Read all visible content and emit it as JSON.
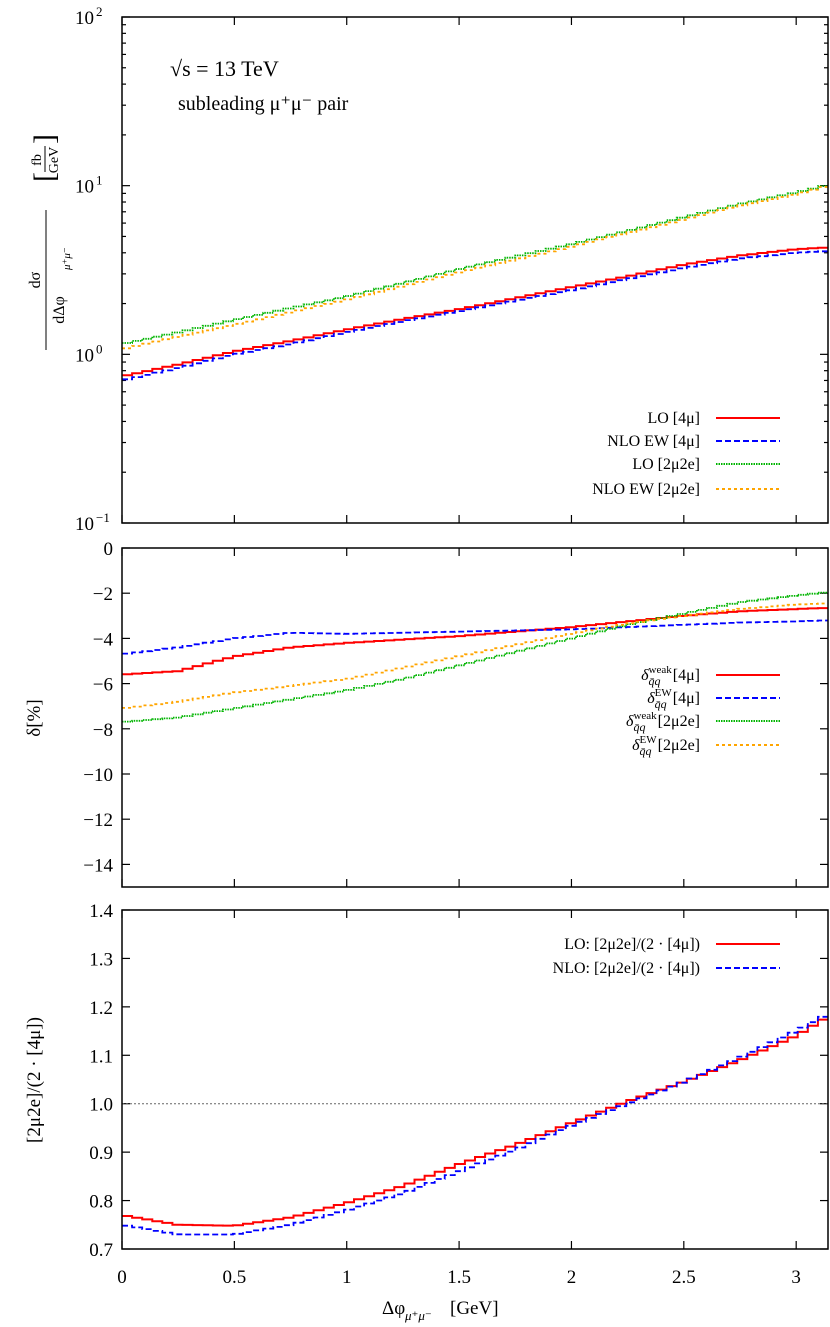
{
  "x_axis": {
    "label": "Δφ",
    "label_sub": "μ⁺μ⁻",
    "label_unit": " [GeV]",
    "xlim": [
      0,
      3.1416
    ],
    "ticks": [
      0,
      0.5,
      1,
      1.5,
      2,
      2.5,
      3
    ],
    "tick_labels": [
      "0",
      "0.5",
      "1",
      "1.5",
      "2",
      "2.5",
      "3"
    ]
  },
  "chart_data": [
    {
      "type": "line",
      "style": "step",
      "yscale": "log",
      "ylim": [
        0.1,
        100
      ],
      "ylabel": {
        "num": "dσ",
        "den": "dΔφ",
        "den_sub": "μ⁺μ⁻",
        "unit_num": "fb",
        "unit_den": "GeV"
      },
      "yticks": [
        0.1,
        1,
        10,
        100
      ],
      "ytick_labels": [
        {
          "base": "10",
          "exp": "−1"
        },
        {
          "base": "10",
          "exp": "0"
        },
        {
          "base": "10",
          "exp": "1"
        },
        {
          "base": "10",
          "exp": "2"
        }
      ],
      "annotations": [
        "√s = 13 TeV",
        "subleading μ⁺μ⁻ pair"
      ],
      "legend_position": "bottom-right",
      "x": [
        0,
        0.25,
        0.5,
        0.75,
        1,
        1.25,
        1.5,
        1.75,
        2,
        2.25,
        2.5,
        2.75,
        3,
        3.1416
      ],
      "series": [
        {
          "name": "LO  [4μ]",
          "color": "#ff0000",
          "dash": "solid",
          "values": [
            0.74,
            0.87,
            1.04,
            1.2,
            1.4,
            1.62,
            1.85,
            2.15,
            2.5,
            2.9,
            3.4,
            3.85,
            4.2,
            4.3
          ]
        },
        {
          "name": "NLO EW  [4μ]",
          "color": "#0000ff",
          "dash": "dashed",
          "values": [
            0.7,
            0.83,
            1.0,
            1.15,
            1.35,
            1.57,
            1.8,
            2.08,
            2.4,
            2.8,
            3.25,
            3.7,
            4.0,
            4.1
          ]
        },
        {
          "name": "LO  [2μ2e]",
          "color": "#00b400",
          "dash": "dotted",
          "values": [
            1.15,
            1.35,
            1.6,
            1.88,
            2.2,
            2.65,
            3.2,
            3.8,
            4.5,
            5.4,
            6.5,
            7.8,
            9.1,
            10.1
          ]
        },
        {
          "name": "NLO EW  [2μ2e]",
          "color": "#ffa500",
          "dash": "dotted-wide",
          "values": [
            1.07,
            1.27,
            1.5,
            1.78,
            2.1,
            2.55,
            3.05,
            3.65,
            4.35,
            5.25,
            6.3,
            7.6,
            8.9,
            10.0
          ]
        }
      ]
    },
    {
      "type": "line",
      "style": "step",
      "yscale": "linear",
      "ylim": [
        -15,
        0
      ],
      "ylabel": {
        "text": "δ[%]"
      },
      "yticks": [
        0,
        -2,
        -4,
        -6,
        -8,
        -10,
        -12,
        -14
      ],
      "ytick_labels": [
        "0",
        "−2",
        "−4",
        "−6",
        "−8",
        "−10",
        "−12",
        "−14"
      ],
      "legend_position": "center-right",
      "x": [
        0,
        0.25,
        0.5,
        0.75,
        1,
        1.25,
        1.5,
        1.75,
        2,
        2.25,
        2.5,
        2.75,
        3,
        3.1416
      ],
      "series": [
        {
          "legend": {
            "sym": "δ",
            "sup": "weak",
            "sub": "q̄q",
            "tag": "[4μ]"
          },
          "color": "#ff0000",
          "dash": "solid",
          "values": [
            -5.6,
            -5.45,
            -4.8,
            -4.4,
            -4.2,
            -4.05,
            -3.9,
            -3.7,
            -3.5,
            -3.25,
            -3.0,
            -2.8,
            -2.7,
            -2.65
          ]
        },
        {
          "legend": {
            "sym": "δ",
            "sup": "EW",
            "sub": "q̄q",
            "tag": "[4μ]"
          },
          "color": "#0000ff",
          "dash": "dashed",
          "values": [
            -4.7,
            -4.4,
            -4.0,
            -3.75,
            -3.8,
            -3.75,
            -3.7,
            -3.65,
            -3.6,
            -3.5,
            -3.4,
            -3.3,
            -3.25,
            -3.2
          ]
        },
        {
          "legend": {
            "sym": "δ",
            "sup": "weak",
            "sub": "q̄q",
            "tag": "[2μ2e]"
          },
          "color": "#00b400",
          "dash": "dotted",
          "values": [
            -7.7,
            -7.5,
            -7.1,
            -6.7,
            -6.3,
            -5.8,
            -5.2,
            -4.6,
            -4.0,
            -3.4,
            -2.9,
            -2.4,
            -2.1,
            -1.95
          ]
        },
        {
          "legend": {
            "sym": "δ",
            "sup": "EW",
            "sub": "q̄q",
            "tag": "[2μ2e]"
          },
          "color": "#ffa500",
          "dash": "dotted-wide",
          "values": [
            -7.1,
            -6.8,
            -6.4,
            -6.1,
            -5.8,
            -5.3,
            -4.8,
            -4.3,
            -3.8,
            -3.35,
            -3.0,
            -2.7,
            -2.5,
            -2.45
          ]
        }
      ]
    },
    {
      "type": "line",
      "style": "step",
      "yscale": "linear",
      "ylim": [
        0.7,
        1.4
      ],
      "ylabel": {
        "text": "[2μ2e]/(2 · [4μ])"
      },
      "yticks": [
        0.7,
        0.8,
        0.9,
        1.0,
        1.1,
        1.2,
        1.3,
        1.4
      ],
      "ytick_labels": [
        "0.7",
        "0.8",
        "0.9",
        "1.0",
        "1.1",
        "1.2",
        "1.3",
        "1.4"
      ],
      "reference_line": 1.0,
      "legend_position": "top-right",
      "x": [
        0,
        0.25,
        0.5,
        0.75,
        1,
        1.25,
        1.5,
        1.75,
        2,
        2.25,
        2.5,
        2.75,
        3,
        3.1416
      ],
      "series": [
        {
          "name": "LO: [2μ2e]/(2 · [4μ])",
          "color": "#ff0000",
          "dash": "solid",
          "values": [
            0.77,
            0.75,
            0.748,
            0.765,
            0.795,
            0.83,
            0.875,
            0.915,
            0.96,
            1.005,
            1.045,
            1.09,
            1.14,
            1.18
          ]
        },
        {
          "name": "NLO: [2μ2e]/(2 · [4μ])",
          "color": "#0000ff",
          "dash": "dashed",
          "values": [
            0.75,
            0.73,
            0.73,
            0.75,
            0.78,
            0.815,
            0.86,
            0.905,
            0.955,
            1.0,
            1.045,
            1.095,
            1.15,
            1.185
          ]
        }
      ]
    }
  ]
}
